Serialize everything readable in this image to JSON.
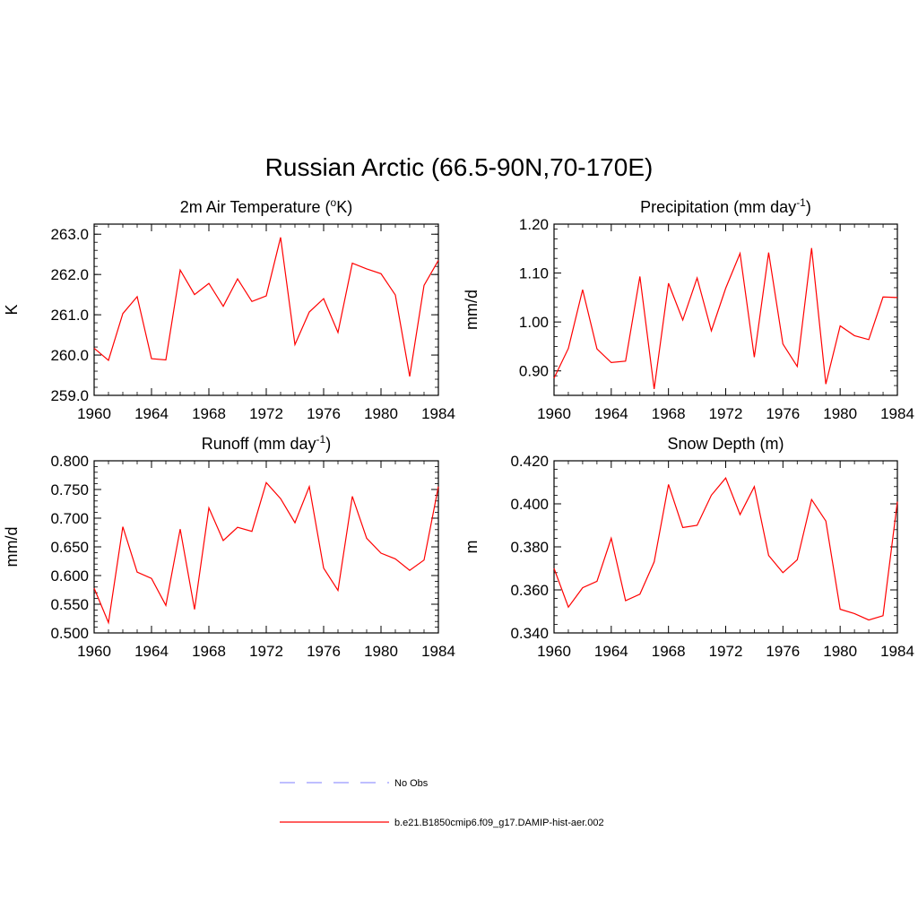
{
  "title": "Russian Arctic (66.5-90N,70-170E)",
  "colors": {
    "series": "#ff0000",
    "obs": "#9999ff",
    "axis": "#000000"
  },
  "legend": [
    {
      "label": "No Obs",
      "style": "dashed",
      "color": "#9999ff"
    },
    {
      "label": "b.e21.B1850cmip6.f09_g17.DAMIP-hist-aer.002",
      "style": "solid",
      "color": "#ff0000"
    }
  ],
  "chart_data": [
    {
      "type": "line",
      "title": "2m Air Temperature (",
      "title_sup": "o",
      "title_after": "K)",
      "title_tail": "",
      "ylabel": "K",
      "xlim": [
        1960,
        1984
      ],
      "ylim": [
        259.0,
        263.25
      ],
      "yticks": [
        "263.0",
        "262.0",
        "261.0",
        "260.0",
        "259.0"
      ],
      "xticks": [
        "1960",
        "1964",
        "1968",
        "1972",
        "1976",
        "1980",
        "1984"
      ],
      "x": [
        1960,
        1961,
        1962,
        1963,
        1964,
        1965,
        1966,
        1967,
        1968,
        1969,
        1970,
        1971,
        1972,
        1973,
        1974,
        1975,
        1976,
        1977,
        1978,
        1979,
        1980,
        1981,
        1982,
        1983,
        1984
      ],
      "series": [
        {
          "values": [
            260.17,
            259.87,
            261.03,
            261.45,
            259.91,
            259.88,
            262.11,
            261.5,
            261.78,
            261.21,
            261.89,
            261.33,
            261.47,
            262.92,
            260.26,
            261.07,
            261.4,
            260.56,
            262.28,
            262.14,
            262.02,
            261.49,
            259.47,
            261.73,
            262.35
          ]
        }
      ]
    },
    {
      "type": "line",
      "title": "Precipitation (mm day",
      "title_sup": "-1",
      "title_after": ")",
      "title_tail": "",
      "ylabel": "mm/d",
      "xlim": [
        1960,
        1984
      ],
      "ylim": [
        0.85,
        1.2
      ],
      "yticks": [
        "1.20",
        "1.10",
        "1.00",
        "0.90"
      ],
      "xticks": [
        "1960",
        "1964",
        "1968",
        "1972",
        "1976",
        "1980",
        "1984"
      ],
      "x": [
        1960,
        1961,
        1962,
        1963,
        1964,
        1965,
        1966,
        1967,
        1968,
        1969,
        1970,
        1971,
        1972,
        1973,
        1974,
        1975,
        1976,
        1977,
        1978,
        1979,
        1980,
        1981,
        1982,
        1983,
        1984
      ],
      "series": [
        {
          "values": [
            0.885,
            0.946,
            1.066,
            0.945,
            0.917,
            0.92,
            1.093,
            0.863,
            1.079,
            1.004,
            1.09,
            0.982,
            1.069,
            1.14,
            0.928,
            1.142,
            0.955,
            0.909,
            1.151,
            0.873,
            0.992,
            0.972,
            0.964,
            1.051,
            1.05
          ]
        }
      ]
    },
    {
      "type": "line",
      "title": "Runoff (mm day",
      "title_sup": "-1",
      "title_after": ")",
      "title_tail": "",
      "ylabel": "mm/d",
      "xlim": [
        1960,
        1984
      ],
      "ylim": [
        0.5,
        0.8
      ],
      "yticks": [
        "0.800",
        "0.750",
        "0.700",
        "0.650",
        "0.600",
        "0.550",
        "0.500"
      ],
      "xticks": [
        "1960",
        "1964",
        "1968",
        "1972",
        "1976",
        "1980",
        "1984"
      ],
      "x": [
        1960,
        1961,
        1962,
        1963,
        1964,
        1965,
        1966,
        1967,
        1968,
        1969,
        1970,
        1971,
        1972,
        1973,
        1974,
        1975,
        1976,
        1977,
        1978,
        1979,
        1980,
        1981,
        1982,
        1983,
        1984
      ],
      "series": [
        {
          "values": [
            0.578,
            0.518,
            0.685,
            0.606,
            0.595,
            0.548,
            0.681,
            0.541,
            0.718,
            0.661,
            0.684,
            0.677,
            0.762,
            0.734,
            0.692,
            0.755,
            0.613,
            0.574,
            0.738,
            0.665,
            0.639,
            0.629,
            0.609,
            0.627,
            0.755
          ]
        }
      ]
    },
    {
      "type": "line",
      "title": "Snow Depth (m)",
      "title_sup": "",
      "title_after": "",
      "title_tail": "",
      "ylabel": "m",
      "xlim": [
        1960,
        1984
      ],
      "ylim": [
        0.34,
        0.42
      ],
      "yticks": [
        "0.420",
        "0.400",
        "0.380",
        "0.360",
        "0.340"
      ],
      "xticks": [
        "1960",
        "1964",
        "1968",
        "1972",
        "1976",
        "1980",
        "1984"
      ],
      "x": [
        1960,
        1961,
        1962,
        1963,
        1964,
        1965,
        1966,
        1967,
        1968,
        1969,
        1970,
        1971,
        1972,
        1973,
        1974,
        1975,
        1976,
        1977,
        1978,
        1979,
        1980,
        1981,
        1982,
        1983,
        1984
      ],
      "series": [
        {
          "values": [
            0.37,
            0.352,
            0.361,
            0.364,
            0.384,
            0.355,
            0.358,
            0.373,
            0.409,
            0.389,
            0.39,
            0.404,
            0.412,
            0.395,
            0.408,
            0.376,
            0.368,
            0.374,
            0.402,
            0.392,
            0.351,
            0.349,
            0.346,
            0.348,
            0.401
          ]
        }
      ]
    }
  ]
}
